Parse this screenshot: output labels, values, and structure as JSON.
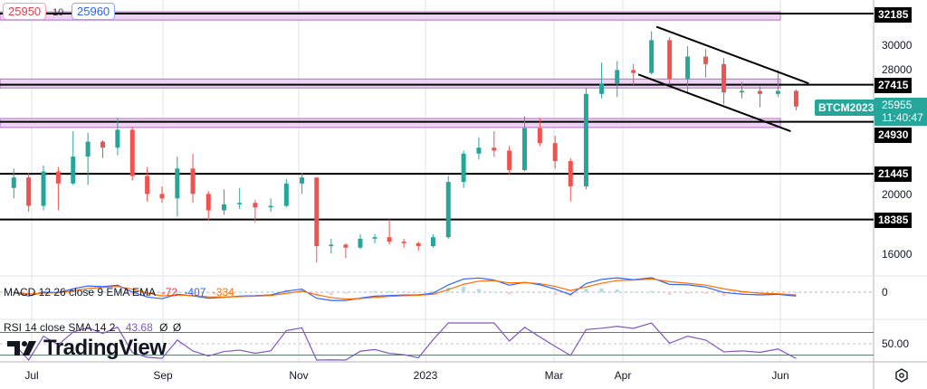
{
  "toolbar": {
    "sell_price": "25950",
    "spread": "10",
    "buy_price": "25960"
  },
  "symbol_tag": {
    "symbol": "BTCM2023",
    "price": "25955",
    "countdown": "11:40:47",
    "color": "#26a69a"
  },
  "colors": {
    "up": "#26a69a",
    "down": "#ef5350",
    "zone_fill": "#e9c9f0",
    "zone_border": "#b66cc8",
    "macd_line": "#2962ff",
    "signal_line": "#ff6d00",
    "rsi_line": "#7e57c2"
  },
  "macd_legend": {
    "title": "MACD 12 26 close 9 EMA EMA",
    "hist": "-72",
    "macd": "-407",
    "signal": "-334",
    "axis_zero": "0"
  },
  "rsi_legend": {
    "title": "RSI 14 close SMA 14 2",
    "value": "43.68",
    "extra1": "Ø",
    "extra2": "Ø",
    "axis_mid": "50.00"
  },
  "logo": "TradingView",
  "settings_icon": "gear-icon",
  "chart_data": {
    "type": "candlestick",
    "symbol": "BTCM2023",
    "interval": "weekly approximation of daily candles",
    "ylim": [
      13800,
      33000
    ],
    "y_ticks": [
      "16000",
      "20000",
      "28000",
      "30000"
    ],
    "y_ticks_hidden": [
      18000,
      22000
    ],
    "x_ticks": [
      {
        "label": "Jul",
        "date": "2022-07-01"
      },
      {
        "label": "Sep",
        "date": "2022-09-01"
      },
      {
        "label": "Nov",
        "date": "2022-11-01"
      },
      {
        "label": "2023",
        "date": "2023-01-01"
      },
      {
        "label": "Mar",
        "date": "2023-03-01"
      },
      {
        "label": "Apr",
        "date": "2023-04-01"
      },
      {
        "label": "Jun",
        "date": "2023-06-01"
      }
    ],
    "grid": "vertical only",
    "levels": [
      "32185",
      "27415",
      "24930",
      "21445",
      "18385"
    ],
    "zones": [
      {
        "from": 31750,
        "to": 32300
      },
      {
        "from": 27200,
        "to": 27800
      },
      {
        "from": 24550,
        "to": 25150
      }
    ],
    "trendlines": [
      {
        "from": {
          "date": "2023-04-14",
          "price": 31300
        },
        "to": {
          "date": "2023-06-12",
          "price": 27500
        }
      },
      {
        "from": {
          "date": "2023-04-07",
          "price": 28100
        },
        "to": {
          "date": "2023-06-05",
          "price": 24300
        }
      }
    ],
    "candles": [
      [
        "2022-06-20",
        20500,
        21800,
        19800,
        21200
      ],
      [
        "2022-06-27",
        21200,
        21500,
        18900,
        19300
      ],
      [
        "2022-07-04",
        19300,
        22000,
        19000,
        21600
      ],
      [
        "2022-07-11",
        21600,
        21900,
        19000,
        20800
      ],
      [
        "2022-07-18",
        20800,
        24300,
        20700,
        22600
      ],
      [
        "2022-07-25",
        22600,
        24200,
        20700,
        23600
      ],
      [
        "2022-08-01",
        23600,
        23700,
        22500,
        23200
      ],
      [
        "2022-08-08",
        23200,
        25200,
        22700,
        24400
      ],
      [
        "2022-08-15",
        24400,
        24600,
        21000,
        21300
      ],
      [
        "2022-08-22",
        21300,
        21900,
        19600,
        20100
      ],
      [
        "2022-08-29",
        20100,
        20600,
        19500,
        19800
      ],
      [
        "2022-09-05",
        19800,
        22600,
        18600,
        21800
      ],
      [
        "2022-09-12",
        21800,
        22800,
        19500,
        20100
      ],
      [
        "2022-09-19",
        20100,
        20300,
        18300,
        19000
      ],
      [
        "2022-09-26",
        19000,
        20400,
        18700,
        19400
      ],
      [
        "2022-10-03",
        19400,
        20500,
        19100,
        19500
      ],
      [
        "2022-10-10",
        19500,
        19700,
        18200,
        19200
      ],
      [
        "2022-10-17",
        19200,
        19800,
        18900,
        19300
      ],
      [
        "2022-10-24",
        19300,
        21100,
        19200,
        20800
      ],
      [
        "2022-10-31",
        20800,
        21500,
        20100,
        21200
      ],
      [
        "2022-11-07",
        21200,
        21200,
        15500,
        16600
      ],
      [
        "2022-11-14",
        16600,
        17100,
        16100,
        16700
      ],
      [
        "2022-11-21",
        16700,
        16800,
        15800,
        16500
      ],
      [
        "2022-11-28",
        16500,
        17400,
        16400,
        17100
      ],
      [
        "2022-12-05",
        17100,
        17400,
        16800,
        17200
      ],
      [
        "2022-12-12",
        17200,
        18400,
        16700,
        16900
      ],
      [
        "2022-12-19",
        16900,
        17100,
        16500,
        16800
      ],
      [
        "2022-12-26",
        16800,
        16900,
        16300,
        16600
      ],
      [
        "2023-01-02",
        16600,
        17400,
        16500,
        17200
      ],
      [
        "2023-01-09",
        17200,
        21300,
        17100,
        20900
      ],
      [
        "2023-01-16",
        20900,
        23000,
        20500,
        22800
      ],
      [
        "2023-01-23",
        22800,
        23900,
        22400,
        23200
      ],
      [
        "2023-01-30",
        23200,
        24300,
        22600,
        23000
      ],
      [
        "2023-02-06",
        23000,
        23300,
        21400,
        21700
      ],
      [
        "2023-02-13",
        21700,
        25300,
        21600,
        24500
      ],
      [
        "2023-02-20",
        24500,
        25200,
        23300,
        23500
      ],
      [
        "2023-02-27",
        23500,
        24000,
        21800,
        22300
      ],
      [
        "2023-03-06",
        22300,
        22500,
        19600,
        20600
      ],
      [
        "2023-03-13",
        20600,
        27200,
        20400,
        26800
      ],
      [
        "2023-03-20",
        26800,
        28900,
        26500,
        27500
      ],
      [
        "2023-03-27",
        27500,
        29000,
        26600,
        28400
      ],
      [
        "2023-04-03",
        28400,
        28800,
        27400,
        28200
      ],
      [
        "2023-04-10",
        28200,
        31000,
        28100,
        30400
      ],
      [
        "2023-04-17",
        30400,
        30600,
        27400,
        27800
      ],
      [
        "2023-04-24",
        27800,
        30000,
        26900,
        29300
      ],
      [
        "2023-05-01",
        29300,
        29800,
        27900,
        28800
      ],
      [
        "2023-05-08",
        28800,
        29200,
        26100,
        26900
      ],
      [
        "2023-05-15",
        26900,
        27600,
        26500,
        27000
      ],
      [
        "2023-05-22",
        27000,
        27300,
        25900,
        26800
      ],
      [
        "2023-05-29",
        26800,
        28400,
        26600,
        27000
      ],
      [
        "2023-06-05",
        27000,
        27100,
        25700,
        25955
      ]
    ]
  }
}
